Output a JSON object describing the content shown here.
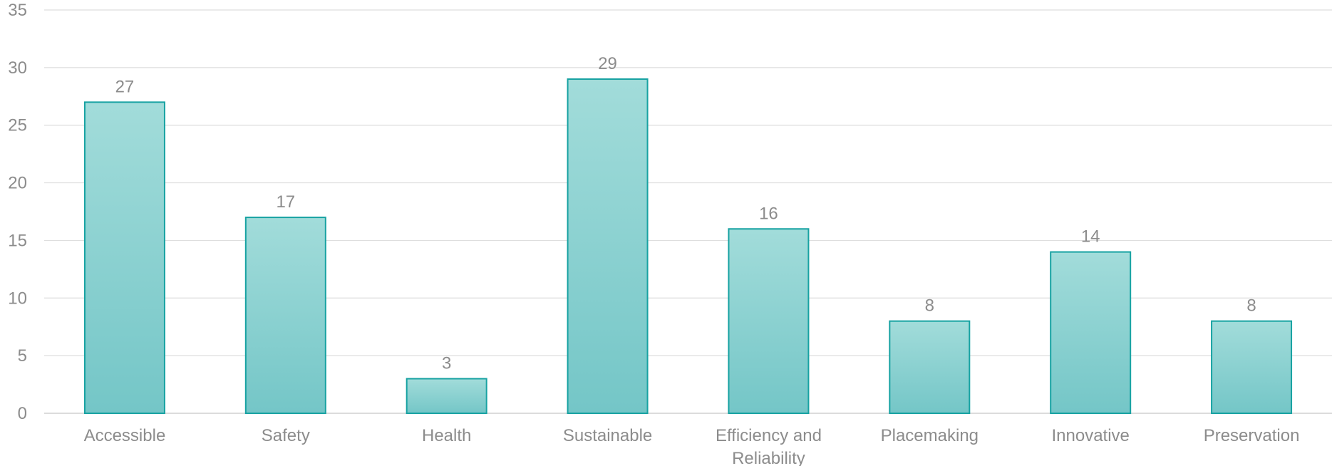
{
  "chart_data": {
    "type": "bar",
    "categories": [
      "Accessible",
      "Safety",
      "Health",
      "Sustainable",
      "Efficiency and Reliability",
      "Placemaking",
      "Innovative",
      "Preservation"
    ],
    "category_lines": [
      [
        "Accessible"
      ],
      [
        "Safety"
      ],
      [
        "Health"
      ],
      [
        "Sustainable"
      ],
      [
        "Efficiency and",
        "Reliability"
      ],
      [
        "Placemaking"
      ],
      [
        "Innovative"
      ],
      [
        "Preservation"
      ]
    ],
    "values": [
      27,
      17,
      3,
      29,
      16,
      8,
      14,
      8
    ],
    "data_labels": [
      "27",
      "17",
      "3",
      "29",
      "16",
      "8",
      "14",
      "8"
    ],
    "yticks": [
      0,
      5,
      10,
      15,
      20,
      25,
      30,
      35
    ],
    "ylim": [
      0,
      35
    ],
    "title": "",
    "xlabel": "",
    "ylabel": "",
    "grid": true,
    "legend": "none"
  },
  "colors": {
    "bar_fill_top": "#a2dcda",
    "bar_fill_bottom": "#74c6c7",
    "bar_stroke": "#17a2a2",
    "grid": "#dedede",
    "axis_line": "#d0d0d0",
    "text": "#8c8c8c"
  }
}
